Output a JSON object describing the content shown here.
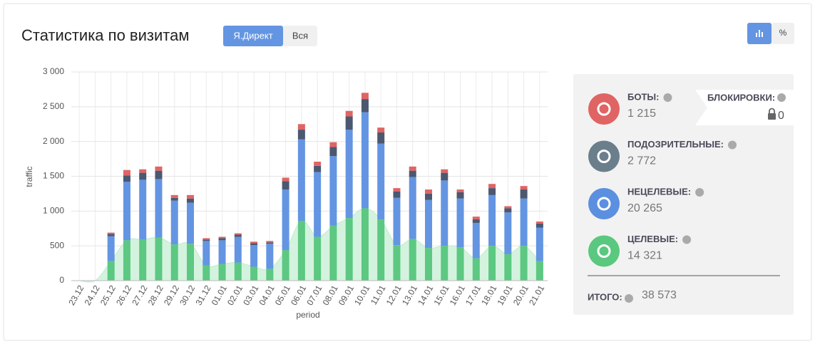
{
  "header": {
    "title": "Статистика по визитам",
    "tabs": [
      "Я.Директ",
      "Вся"
    ],
    "view_buttons": [
      "%"
    ]
  },
  "chart_data": {
    "type": "bar",
    "stacked": true,
    "x_label": "period",
    "y_label": "traffic",
    "categories": [
      "23.12",
      "24.12",
      "25.12",
      "26.12",
      "27.12",
      "28.12",
      "29.12",
      "30.12",
      "31.12",
      "01.01",
      "02.01",
      "03.01",
      "04.01",
      "05.01",
      "06.01",
      "07.01",
      "08.01",
      "09.01",
      "10.01",
      "11.01",
      "12.01",
      "13.01",
      "14.01",
      "15.01",
      "16.01",
      "17.01",
      "18.01",
      "19.01",
      "20.01",
      "21.01"
    ],
    "series": [
      {
        "name": "Целевые",
        "color": "#5cc882",
        "values": [
          0,
          0,
          280,
          580,
          590,
          620,
          520,
          530,
          220,
          240,
          260,
          200,
          170,
          440,
          860,
          630,
          790,
          900,
          1040,
          880,
          510,
          600,
          470,
          500,
          480,
          320,
          500,
          380,
          500,
          280
        ]
      },
      {
        "name": "Нецелевые",
        "color": "#6495e2",
        "values": [
          0,
          0,
          360,
          840,
          860,
          840,
          630,
          590,
          350,
          340,
          370,
          310,
          360,
          870,
          1170,
          930,
          1000,
          1270,
          1380,
          1090,
          680,
          890,
          690,
          940,
          700,
          510,
          730,
          600,
          680,
          480
        ]
      },
      {
        "name": "Подозрительные",
        "color": "#4b5870",
        "values": [
          0,
          0,
          30,
          90,
          100,
          120,
          40,
          60,
          20,
          30,
          30,
          30,
          20,
          120,
          140,
          90,
          130,
          190,
          190,
          160,
          90,
          90,
          90,
          110,
          90,
          50,
          100,
          60,
          130,
          60
        ]
      },
      {
        "name": "Боты",
        "color": "#e06464",
        "values": [
          0,
          0,
          20,
          80,
          50,
          60,
          40,
          50,
          20,
          20,
          20,
          20,
          20,
          50,
          80,
          60,
          70,
          80,
          90,
          70,
          50,
          60,
          60,
          50,
          40,
          40,
          60,
          30,
          50,
          30
        ]
      }
    ],
    "area_color": "#d4f3de",
    "ylim": [
      0,
      3000
    ],
    "yticks": [
      0,
      500,
      {
        "value": 1000,
        "label": "1 000"
      },
      {
        "value": 1500,
        "label": "1 500"
      },
      {
        "value": 2000,
        "label": "2 000"
      },
      {
        "value": 2500,
        "label": "2 500"
      },
      {
        "value": 3000,
        "label": "3 000"
      }
    ],
    "grid": true
  },
  "summary": {
    "items": [
      {
        "label": "БОТЫ:",
        "value": "1 215",
        "color": "#e06464"
      },
      {
        "label": "ПОДОЗРИТЕЛЬНЫЕ:",
        "value": "2 772",
        "color": "#6b7e8c"
      },
      {
        "label": "НЕЦЕЛЕВЫЕ:",
        "value": "20 265",
        "color": "#5b8fe0"
      },
      {
        "label": "ЦЕЛЕВЫЕ:",
        "value": "14 321",
        "color": "#5ac87f"
      }
    ],
    "blocks": {
      "label": "БЛОКИРОВКИ:",
      "value": "0"
    },
    "total": {
      "label": "ИТОГО:",
      "value": "38 573"
    }
  }
}
